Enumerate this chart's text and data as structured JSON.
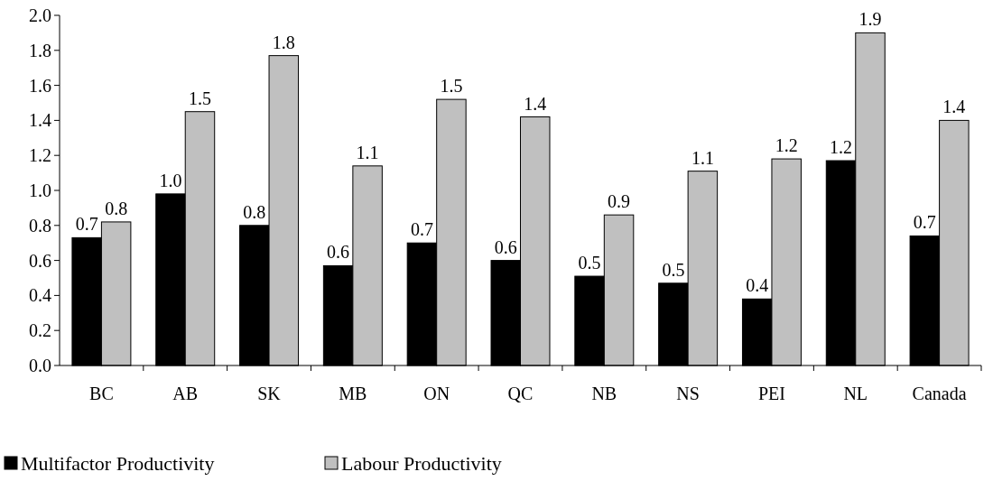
{
  "chart_data": {
    "type": "bar",
    "categories": [
      "BC",
      "AB",
      "SK",
      "MB",
      "ON",
      "QC",
      "NB",
      "NS",
      "PEI",
      "NL",
      "Canada"
    ],
    "series": [
      {
        "name": "Multifactor Productivity",
        "color": "#000000",
        "values": [
          0.73,
          0.98,
          0.8,
          0.57,
          0.7,
          0.6,
          0.51,
          0.47,
          0.38,
          1.17,
          0.74
        ],
        "value_labels": [
          "0.7",
          "1.0",
          "0.8",
          "0.6",
          "0.7",
          "0.6",
          "0.5",
          "0.5",
          "0.4",
          "1.2",
          "0.7"
        ]
      },
      {
        "name": "Labour Productivity",
        "color": "#c0c0c0",
        "values": [
          0.82,
          1.45,
          1.77,
          1.14,
          1.52,
          1.42,
          0.86,
          1.11,
          1.18,
          1.9,
          1.4
        ],
        "value_labels": [
          "0.8",
          "1.5",
          "1.8",
          "1.1",
          "1.5",
          "1.4",
          "0.9",
          "1.1",
          "1.2",
          "1.9",
          "1.4"
        ]
      }
    ],
    "ylim": [
      0,
      2
    ],
    "yticks": [
      {
        "value": 0,
        "label": "0.0"
      },
      {
        "value": 0.2,
        "label": "0.2"
      },
      {
        "value": 0.4,
        "label": "0.4"
      },
      {
        "value": 0.6,
        "label": "0.6"
      },
      {
        "value": 0.8,
        "label": "0.8"
      },
      {
        "value": 1,
        "label": "1.0"
      },
      {
        "value": 1.2,
        "label": "1.2"
      },
      {
        "value": 1.4,
        "label": "1.4"
      },
      {
        "value": 1.6,
        "label": "1.6"
      },
      {
        "value": 1.8,
        "label": "1.8"
      },
      {
        "value": 2,
        "label": "2.0"
      }
    ],
    "grid": false,
    "legend": "bottom left"
  }
}
